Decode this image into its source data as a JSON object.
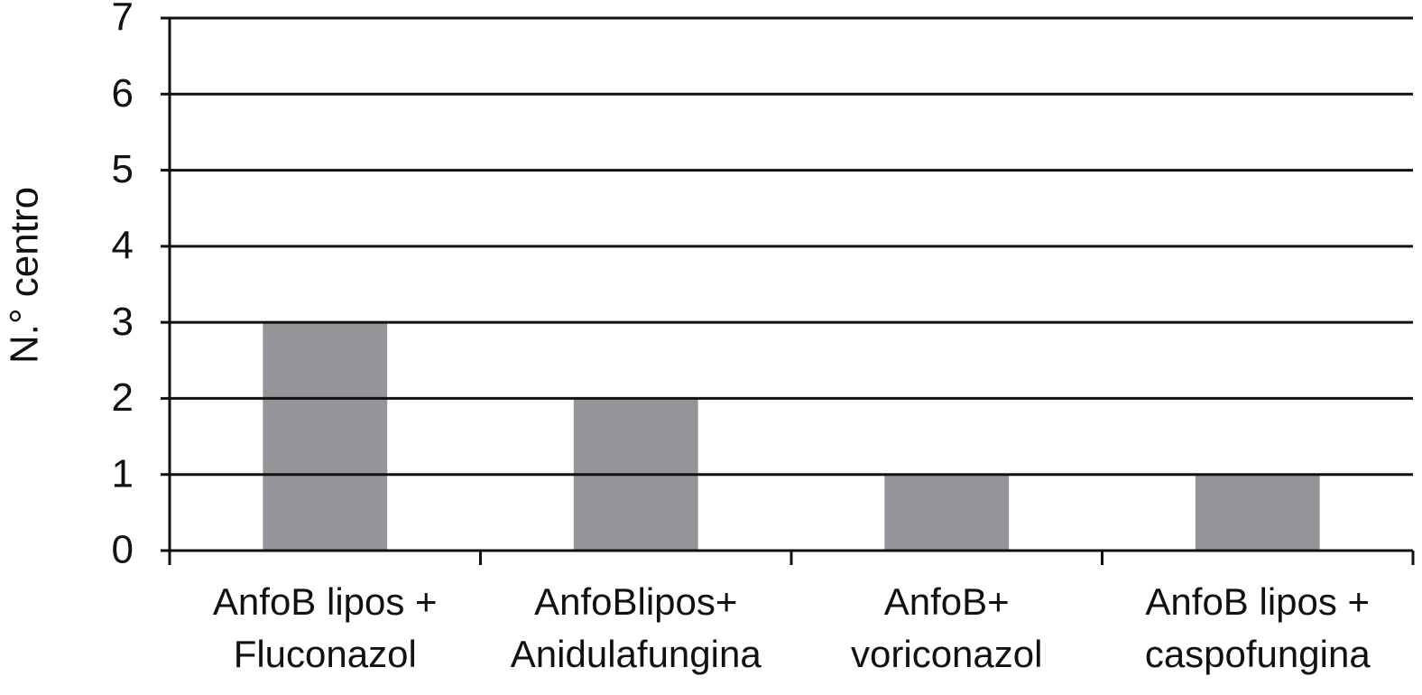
{
  "chart_data": {
    "type": "bar",
    "y_label": "N.° centro",
    "categories": [
      [
        "AnfoB lipos +",
        "Fluconazol"
      ],
      [
        "AnfoBlipos+",
        "Anidulafungina"
      ],
      [
        "AnfoB+",
        "voriconazol"
      ],
      [
        "AnfoB lipos +",
        "caspofungina"
      ]
    ],
    "values": [
      3,
      2,
      1,
      1
    ],
    "color": "#939598",
    "ylim": [
      0,
      7
    ],
    "yticks": [
      0,
      1,
      2,
      3,
      4,
      5,
      6,
      7
    ],
    "grid": true
  }
}
